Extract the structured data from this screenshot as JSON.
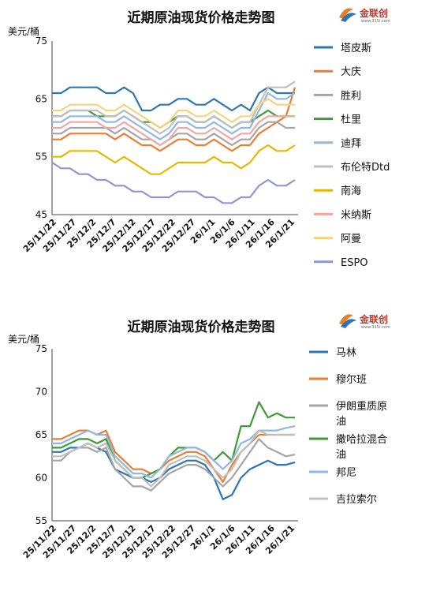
{
  "logo": {
    "text": "金联创",
    "sub": "www.315i.com"
  },
  "chart_data": [
    {
      "type": "line",
      "title": "近期原油现货价格走势图",
      "ylabel": "美元/桶",
      "ylim": [
        45,
        75
      ],
      "yticks": [
        45,
        55,
        65,
        75
      ],
      "xtick_labels": [
        "25/11/22",
        "25/11/27",
        "25/12/2",
        "25/12/7",
        "25/12/12",
        "25/12/17",
        "25/12/22",
        "25/12/27",
        "26/1/1",
        "26/1/6",
        "26/1/11",
        "26/1/16",
        "26/1/21"
      ],
      "legend_position": "right",
      "series": [
        {
          "name": "塔皮斯",
          "color": "#2e75b6",
          "values": [
            66,
            66,
            67,
            67,
            67,
            67,
            66,
            66,
            67,
            66,
            63,
            63,
            64,
            64,
            65,
            65,
            64,
            64,
            65,
            64,
            63,
            64,
            63,
            66,
            67,
            66,
            66,
            66
          ]
        },
        {
          "name": "大庆",
          "color": "#ed7d31",
          "values": [
            58,
            58,
            59,
            59,
            59,
            59,
            59,
            58,
            59,
            58,
            57,
            57,
            56,
            57,
            58,
            58,
            57,
            57,
            58,
            57,
            56,
            57,
            57,
            59,
            60,
            61,
            62,
            67
          ]
        },
        {
          "name": "胜利",
          "color": "#a5a5a5",
          "values": [
            59,
            59,
            60,
            60,
            60,
            60,
            60,
            59,
            60,
            59,
            58,
            58,
            57,
            58,
            59,
            59,
            58,
            58,
            59,
            58,
            57,
            58,
            58,
            60,
            61,
            61,
            60,
            60
          ]
        },
        {
          "name": "杜里",
          "color": "#3f9b35",
          "values": [
            62,
            62,
            63,
            63,
            63,
            62,
            62,
            62,
            63,
            62,
            61,
            61,
            60,
            61,
            62,
            62,
            61,
            61,
            62,
            61,
            60,
            61,
            61,
            62,
            63,
            62,
            62,
            62
          ]
        },
        {
          "name": "迪拜",
          "color": "#8fb8e6",
          "values": [
            61,
            61,
            62,
            62,
            62,
            62,
            61,
            61,
            62,
            61,
            60,
            59,
            58,
            59,
            61,
            61,
            60,
            60,
            61,
            60,
            59,
            60,
            60,
            63,
            66,
            65,
            65,
            66
          ]
        },
        {
          "name": "布伦特Dtd",
          "color": "#bfbfbf",
          "values": [
            62,
            62,
            63,
            63,
            63,
            63,
            62,
            62,
            63,
            62,
            61,
            60,
            59,
            60,
            62,
            62,
            61,
            61,
            62,
            61,
            60,
            61,
            61,
            64,
            67,
            67,
            67,
            68
          ]
        },
        {
          "name": "南海",
          "color": "#e6b800",
          "values": [
            55,
            55,
            56,
            56,
            56,
            56,
            55,
            54,
            55,
            54,
            53,
            52,
            52,
            53,
            54,
            54,
            54,
            54,
            55,
            54,
            54,
            53,
            54,
            56,
            57,
            56,
            56,
            57
          ]
        },
        {
          "name": "米纳斯",
          "color": "#f4a6a0",
          "values": [
            60,
            60,
            61,
            61,
            61,
            61,
            60,
            60,
            61,
            60,
            59,
            58,
            57,
            58,
            60,
            60,
            59,
            59,
            60,
            59,
            58,
            59,
            59,
            61,
            62,
            62,
            62,
            62
          ]
        },
        {
          "name": "阿曼",
          "color": "#f7d37c",
          "values": [
            63,
            63,
            64,
            64,
            64,
            64,
            63,
            63,
            64,
            63,
            62,
            61,
            60,
            61,
            63,
            63,
            62,
            62,
            63,
            62,
            61,
            62,
            62,
            64,
            65,
            64,
            64,
            64
          ]
        },
        {
          "name": "ESPO",
          "color": "#8e97d6",
          "values": [
            54,
            53,
            53,
            52,
            52,
            51,
            51,
            50,
            50,
            49,
            49,
            48,
            48,
            48,
            49,
            49,
            49,
            48,
            48,
            47,
            47,
            48,
            48,
            50,
            51,
            50,
            50,
            51
          ]
        }
      ]
    },
    {
      "type": "line",
      "title": "近期原油现货价格走势图",
      "ylabel": "美元/桶",
      "ylim": [
        55,
        75
      ],
      "yticks": [
        55,
        60,
        65,
        70,
        75
      ],
      "xtick_labels": [
        "25/11/22",
        "25/11/27",
        "25/12/2",
        "25/12/7",
        "25/12/12",
        "25/12/17",
        "25/12/22",
        "25/12/27",
        "26/1/1",
        "26/1/6",
        "26/1/11",
        "26/1/16",
        "26/1/21"
      ],
      "legend_position": "right",
      "series": [
        {
          "name": "马林",
          "color": "#2e75b6",
          "values": [
            63,
            63,
            63.5,
            63.5,
            64,
            63.5,
            63,
            61,
            60.5,
            60,
            60,
            59.5,
            60,
            61,
            61.5,
            62,
            62,
            61.5,
            60,
            57.5,
            58,
            60,
            61,
            61.5,
            62,
            61.5,
            61.5,
            61.8
          ]
        },
        {
          "name": "穆尔班",
          "color": "#ed7d31",
          "values": [
            64.5,
            64.5,
            65,
            65.5,
            65.5,
            65,
            65.5,
            63,
            62,
            61,
            61,
            60.5,
            61,
            62,
            62.5,
            63,
            63,
            62.5,
            61,
            59.5,
            61.5,
            63,
            64,
            65,
            65,
            65,
            65,
            65
          ]
        },
        {
          "name": "伊朗重质原油",
          "color": "#a5a5a5",
          "values": [
            62,
            62,
            63,
            63.5,
            63.5,
            63,
            63.5,
            61,
            60,
            59,
            59,
            58.5,
            59.5,
            60.5,
            61,
            61.5,
            61.5,
            61,
            60,
            59,
            60,
            61.5,
            63,
            64.5,
            63.5,
            63,
            62.5,
            62.7
          ]
        },
        {
          "name": "撒哈拉混合油",
          "color": "#3f9b35",
          "values": [
            63.5,
            63.5,
            64,
            64.5,
            64.5,
            64,
            64.5,
            62,
            61,
            60,
            60,
            60.5,
            61,
            62.5,
            63.5,
            63.5,
            63.5,
            63,
            62,
            63,
            62,
            66,
            66,
            68.8,
            67,
            67.5,
            67,
            67
          ]
        },
        {
          "name": "邦尼",
          "color": "#8fb8e6",
          "values": [
            64,
            64,
            64.5,
            65,
            65.5,
            65,
            65,
            62.5,
            61.5,
            60.5,
            60.5,
            60,
            61,
            62.5,
            63,
            63.5,
            63.5,
            63,
            62,
            61,
            62,
            64,
            64.5,
            65.5,
            65.5,
            65.5,
            65.8,
            66
          ]
        },
        {
          "name": "吉拉索尔",
          "color": "#bfbfbf",
          "values": [
            62.5,
            62.5,
            63,
            63.5,
            64,
            63.5,
            64,
            62,
            61,
            60,
            60,
            59,
            60,
            61.5,
            62,
            62.5,
            62.5,
            62,
            61,
            60,
            61,
            63,
            64,
            65.5,
            65,
            65,
            65,
            65
          ]
        }
      ]
    }
  ]
}
